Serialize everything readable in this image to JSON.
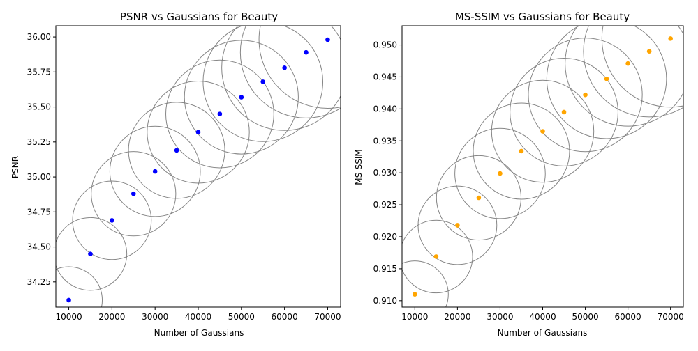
{
  "chart_data": [
    {
      "type": "scatter",
      "title": "PSNR vs Gaussians for Beauty",
      "xlabel": "Number of Gaussians",
      "ylabel": "PSNR",
      "xlim": [
        7000,
        73000
      ],
      "ylim": [
        34.07,
        36.08
      ],
      "xticks": [
        10000,
        20000,
        30000,
        40000,
        50000,
        60000,
        70000
      ],
      "xtick_labels": [
        "10000",
        "20000",
        "30000",
        "40000",
        "50000",
        "60000",
        "70000"
      ],
      "yticks": [
        34.25,
        34.5,
        34.75,
        35.0,
        35.25,
        35.5,
        35.75,
        36.0
      ],
      "ytick_labels": [
        "34.25",
        "34.50",
        "34.75",
        "35.00",
        "35.25",
        "35.50",
        "35.75",
        "36.00"
      ],
      "grid": false,
      "point_color": "#0000ff",
      "circle_color": "#808080",
      "x": [
        10000,
        15000,
        20000,
        25000,
        30000,
        35000,
        40000,
        45000,
        50000,
        55000,
        60000,
        65000,
        70000
      ],
      "y": [
        34.12,
        34.45,
        34.69,
        34.88,
        35.04,
        35.19,
        35.32,
        35.45,
        35.57,
        35.68,
        35.78,
        35.89,
        35.98
      ]
    },
    {
      "type": "scatter",
      "title": "MS-SSIM vs Gaussians for Beauty",
      "xlabel": "Number of Gaussians",
      "ylabel": "MS-SSIM",
      "xlim": [
        7000,
        73000
      ],
      "ylim": [
        0.909,
        0.953
      ],
      "xticks": [
        10000,
        20000,
        30000,
        40000,
        50000,
        60000,
        70000
      ],
      "xtick_labels": [
        "10000",
        "20000",
        "30000",
        "40000",
        "50000",
        "60000",
        "70000"
      ],
      "yticks": [
        0.91,
        0.915,
        0.92,
        0.925,
        0.93,
        0.935,
        0.94,
        0.945,
        0.95
      ],
      "ytick_labels": [
        "0.910",
        "0.915",
        "0.920",
        "0.925",
        "0.930",
        "0.935",
        "0.940",
        "0.945",
        "0.950"
      ],
      "grid": false,
      "point_color": "#ffa500",
      "circle_color": "#808080",
      "x": [
        10000,
        15000,
        20000,
        25000,
        30000,
        35000,
        40000,
        45000,
        50000,
        55000,
        60000,
        65000,
        70000
      ],
      "y": [
        0.911,
        0.9169,
        0.9218,
        0.9261,
        0.9299,
        0.9334,
        0.9365,
        0.9395,
        0.9422,
        0.9447,
        0.9471,
        0.949,
        0.951
      ]
    }
  ]
}
